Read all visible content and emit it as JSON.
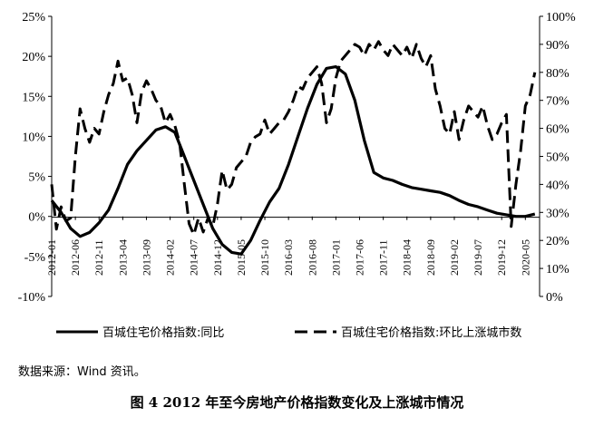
{
  "chart_data": {
    "type": "line",
    "title": "",
    "y_left": {
      "ticks": [
        "25%",
        "20%",
        "15%",
        "10%",
        "5%",
        "0%",
        "-5%",
        "-10%"
      ],
      "range": [
        -10,
        25
      ]
    },
    "y_right": {
      "ticks": [
        "100%",
        "90%",
        "80%",
        "70%",
        "60%",
        "50%",
        "40%",
        "30%",
        "20%",
        "10%",
        "0%"
      ],
      "range": [
        0,
        100
      ]
    },
    "x_ticks": [
      "2012-01",
      "2012-06",
      "2012-11",
      "2013-04",
      "2013-09",
      "2014-02",
      "2014-07",
      "2014-12",
      "2015-05",
      "2015-10",
      "2016-03",
      "2016-08",
      "2017-01",
      "2017-06",
      "2017-11",
      "2018-04",
      "2018-09",
      "2019-02",
      "2019-07",
      "2019-12",
      "2020-05"
    ],
    "grid": false,
    "legend_position": "bottom",
    "series": [
      {
        "name": "百城住宅价格指数:同比",
        "axis": "left",
        "style": "solid",
        "points": [
          [
            "2012-01",
            2.0
          ],
          [
            "2012-03",
            0.5
          ],
          [
            "2012-05",
            -1.5
          ],
          [
            "2012-07",
            -2.5
          ],
          [
            "2012-09",
            -2.0
          ],
          [
            "2012-11",
            -0.8
          ],
          [
            "2013-01",
            0.8
          ],
          [
            "2013-03",
            3.5
          ],
          [
            "2013-05",
            6.5
          ],
          [
            "2013-07",
            8.2
          ],
          [
            "2013-09",
            9.5
          ],
          [
            "2013-11",
            10.8
          ],
          [
            "2014-01",
            11.2
          ],
          [
            "2014-03",
            10.5
          ],
          [
            "2014-05",
            7.5
          ],
          [
            "2014-07",
            4.5
          ],
          [
            "2014-09",
            1.5
          ],
          [
            "2014-11",
            -1.5
          ],
          [
            "2015-01",
            -3.5
          ],
          [
            "2015-03",
            -4.5
          ],
          [
            "2015-05",
            -4.7
          ],
          [
            "2015-07",
            -3.0
          ],
          [
            "2015-09",
            -0.5
          ],
          [
            "2015-11",
            1.8
          ],
          [
            "2016-01",
            3.5
          ],
          [
            "2016-03",
            6.5
          ],
          [
            "2016-05",
            10.0
          ],
          [
            "2016-07",
            13.5
          ],
          [
            "2016-09",
            16.5
          ],
          [
            "2016-11",
            18.5
          ],
          [
            "2017-01",
            18.7
          ],
          [
            "2017-03",
            17.8
          ],
          [
            "2017-05",
            14.5
          ],
          [
            "2017-07",
            9.5
          ],
          [
            "2017-09",
            5.5
          ],
          [
            "2017-11",
            4.8
          ],
          [
            "2018-01",
            4.5
          ],
          [
            "2018-03",
            4.0
          ],
          [
            "2018-05",
            3.6
          ],
          [
            "2018-07",
            3.4
          ],
          [
            "2018-09",
            3.2
          ],
          [
            "2018-11",
            3.0
          ],
          [
            "2019-01",
            2.6
          ],
          [
            "2019-03",
            2.0
          ],
          [
            "2019-05",
            1.5
          ],
          [
            "2019-07",
            1.2
          ],
          [
            "2019-09",
            0.8
          ],
          [
            "2019-11",
            0.4
          ],
          [
            "2020-01",
            0.2
          ],
          [
            "2020-03",
            0.0
          ],
          [
            "2020-05",
            0.0
          ],
          [
            "2020-07",
            0.3
          ]
        ]
      },
      {
        "name": "百城住宅价格指数:环比上涨城市数",
        "axis": "right",
        "style": "dashed",
        "points": [
          [
            "2012-01",
            40
          ],
          [
            "2012-02",
            24
          ],
          [
            "2012-03",
            32
          ],
          [
            "2012-04",
            27
          ],
          [
            "2012-05",
            28
          ],
          [
            "2012-06",
            50
          ],
          [
            "2012-07",
            67
          ],
          [
            "2012-08",
            60
          ],
          [
            "2012-09",
            55
          ],
          [
            "2012-10",
            60
          ],
          [
            "2012-11",
            58
          ],
          [
            "2012-12",
            66
          ],
          [
            "2013-01",
            72
          ],
          [
            "2013-02",
            76
          ],
          [
            "2013-03",
            84
          ],
          [
            "2013-04",
            77
          ],
          [
            "2013-05",
            78
          ],
          [
            "2013-06",
            72
          ],
          [
            "2013-07",
            62
          ],
          [
            "2013-08",
            73
          ],
          [
            "2013-09",
            77
          ],
          [
            "2013-10",
            74
          ],
          [
            "2013-11",
            70
          ],
          [
            "2013-12",
            68
          ],
          [
            "2014-01",
            62
          ],
          [
            "2014-02",
            65
          ],
          [
            "2014-03",
            61
          ],
          [
            "2014-04",
            55
          ],
          [
            "2014-05",
            40
          ],
          [
            "2014-06",
            26
          ],
          [
            "2014-07",
            22
          ],
          [
            "2014-08",
            28
          ],
          [
            "2014-09",
            23
          ],
          [
            "2014-10",
            28
          ],
          [
            "2014-11",
            25
          ],
          [
            "2014-12",
            33
          ],
          [
            "2015-01",
            45
          ],
          [
            "2015-02",
            38
          ],
          [
            "2015-03",
            40
          ],
          [
            "2015-04",
            46
          ],
          [
            "2015-05",
            48
          ],
          [
            "2015-06",
            50
          ],
          [
            "2015-07",
            55
          ],
          [
            "2015-08",
            57
          ],
          [
            "2015-09",
            58
          ],
          [
            "2015-10",
            63
          ],
          [
            "2015-11",
            58
          ],
          [
            "2015-12",
            60
          ],
          [
            "2016-01",
            62
          ],
          [
            "2016-02",
            63
          ],
          [
            "2016-03",
            66
          ],
          [
            "2016-04",
            70
          ],
          [
            "2016-05",
            75
          ],
          [
            "2016-06",
            74
          ],
          [
            "2016-07",
            78
          ],
          [
            "2016-08",
            80
          ],
          [
            "2016-09",
            82
          ],
          [
            "2016-10",
            76
          ],
          [
            "2016-11",
            62
          ],
          [
            "2016-12",
            67
          ],
          [
            "2017-01",
            78
          ],
          [
            "2017-02",
            84
          ],
          [
            "2017-03",
            86
          ],
          [
            "2017-04",
            88
          ],
          [
            "2017-05",
            90
          ],
          [
            "2017-06",
            89
          ],
          [
            "2017-07",
            86
          ],
          [
            "2017-08",
            90
          ],
          [
            "2017-09",
            88
          ],
          [
            "2017-10",
            91
          ],
          [
            "2017-11",
            88
          ],
          [
            "2017-12",
            86
          ],
          [
            "2018-01",
            90
          ],
          [
            "2018-02",
            88
          ],
          [
            "2018-03",
            86
          ],
          [
            "2018-04",
            89
          ],
          [
            "2018-05",
            85
          ],
          [
            "2018-06",
            90
          ],
          [
            "2018-07",
            85
          ],
          [
            "2018-08",
            82
          ],
          [
            "2018-09",
            86
          ],
          [
            "2018-10",
            74
          ],
          [
            "2018-11",
            68
          ],
          [
            "2018-12",
            60
          ],
          [
            "2019-01",
            58
          ],
          [
            "2019-02",
            66
          ],
          [
            "2019-03",
            56
          ],
          [
            "2019-04",
            63
          ],
          [
            "2019-05",
            68
          ],
          [
            "2019-06",
            66
          ],
          [
            "2019-07",
            64
          ],
          [
            "2019-08",
            68
          ],
          [
            "2019-09",
            61
          ],
          [
            "2019-10",
            56
          ],
          [
            "2019-11",
            58
          ],
          [
            "2019-12",
            62
          ],
          [
            "2020-01",
            65
          ],
          [
            "2020-02",
            25
          ],
          [
            "2020-03",
            40
          ],
          [
            "2020-04",
            52
          ],
          [
            "2020-05",
            68
          ],
          [
            "2020-06",
            72
          ],
          [
            "2020-07",
            80
          ]
        ]
      }
    ]
  },
  "source_note": "数据来源：Wind 资讯。",
  "caption": "图 4 2012 年至今房地产价格指数变化及上涨城市情况"
}
